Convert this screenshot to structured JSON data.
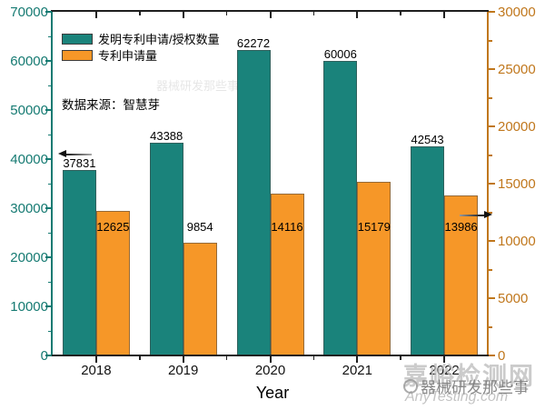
{
  "chart_data": {
    "type": "bar",
    "title": "",
    "categories": [
      "2018",
      "2019",
      "2020",
      "2021",
      "2022"
    ],
    "series": [
      {
        "name": "发明专利申请/授权数量",
        "axis": "left",
        "color": "#1a837b",
        "values": [
          37831,
          43388,
          62272,
          60006,
          42543
        ]
      },
      {
        "name": "专利申请量",
        "axis": "right",
        "color": "#f69728",
        "values": [
          12625,
          9854,
          14116,
          15179,
          13986
        ]
      }
    ],
    "xlabel": "Year",
    "ylabel_left": "",
    "ylabel_right": "",
    "axes": {
      "left": {
        "min": 0,
        "max": 70000,
        "ticks": [
          0,
          10000,
          20000,
          30000,
          40000,
          50000,
          60000,
          70000
        ],
        "color": "#157a72"
      },
      "right": {
        "min": 0,
        "max": 30000,
        "ticks": [
          0,
          5000,
          10000,
          15000,
          20000,
          25000,
          30000
        ],
        "color": "#c0771c"
      },
      "frame_color": "#1f1f1f"
    },
    "grid": false,
    "legend_position": "top-left-inside",
    "source_note": "数据来源：智慧芽"
  },
  "legend": {
    "items": [
      {
        "label": "发明专利申请/授权数量",
        "color": "#1a837b"
      },
      {
        "label": "专利申请量",
        "color": "#f69728"
      }
    ]
  },
  "annotations": {
    "source_note": "数据来源：智慧芽",
    "left_axis_pointer_icon": "arrow-left-icon",
    "right_axis_pointer_icon": "arrow-right-icon"
  },
  "x_axis_title": "Year",
  "watermarks": {
    "site_name": "嘉峪检测网",
    "site_url": "AnyTesting.com",
    "account_name": "器械研发那些事",
    "faint_center_text": "器械研发那些事"
  }
}
